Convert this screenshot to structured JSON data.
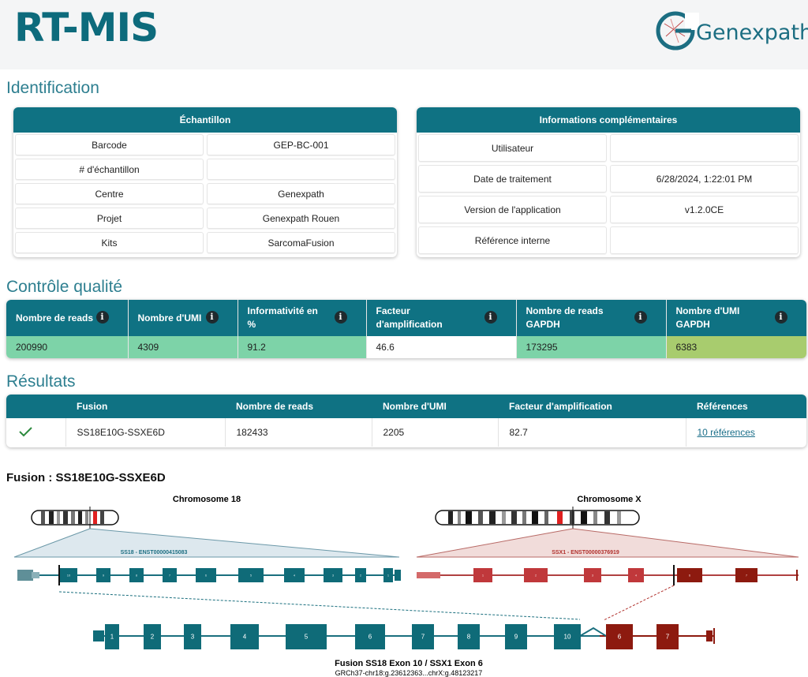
{
  "header": {
    "title": "RT-MIS",
    "logo_text": "Genexpath"
  },
  "identification": {
    "title": "Identification",
    "sample": {
      "heading": "Échantillon",
      "rows": [
        {
          "label": "Barcode",
          "value": "GEP-BC-001"
        },
        {
          "label": "# d'échantillon",
          "value": ""
        },
        {
          "label": "Centre",
          "value": "Genexpath"
        },
        {
          "label": "Projet",
          "value": "Genexpath Rouen"
        },
        {
          "label": "Kits",
          "value": "SarcomaFusion"
        }
      ]
    },
    "extra": {
      "heading": "Informations complémentaires",
      "rows": [
        {
          "label": "Utilisateur",
          "value": ""
        },
        {
          "label": "Date de traitement",
          "value": "6/28/2024, 1:22:01 PM"
        },
        {
          "label": "Version de l'application",
          "value": "v1.2.0CE"
        },
        {
          "label": "Référence interne",
          "value": ""
        }
      ]
    }
  },
  "qc": {
    "title": "Contrôle qualité",
    "columns": [
      {
        "label": "Nombre de reads",
        "value": "200990",
        "color": "#7dd3a8"
      },
      {
        "label": "Nombre d'UMI",
        "value": "4309",
        "color": "#7dd3a8"
      },
      {
        "label": "Informativité en %",
        "value": "91.2",
        "color": "#7dd3a8"
      },
      {
        "label": "Facteur d'amplification",
        "value": "46.6",
        "color": "#ffffff"
      },
      {
        "label": "Nombre de reads GAPDH",
        "value": "173295",
        "color": "#7dd3a8"
      },
      {
        "label": "Nombre d'UMI GAPDH",
        "value": "6383",
        "color": "#a8cc6e"
      }
    ],
    "info_glyph": "i"
  },
  "results": {
    "title": "Résultats",
    "headers": [
      "",
      "Fusion",
      "Nombre de reads",
      "Nombre d'UMI",
      "Facteur d'amplification",
      "Références"
    ],
    "row": {
      "status_icon": "check-icon",
      "fusion": "SS18E10G-SSXE6D",
      "reads": "182433",
      "umi": "2205",
      "amplification": "82.7",
      "references": "10 références"
    }
  },
  "fusion": {
    "title": "Fusion : SS18E10G-SSXE6D",
    "left": {
      "chromosome": "Chromosome 18",
      "transcript": "SS18 - ENST00000415083",
      "exons": [
        "10",
        "9",
        "8",
        "7",
        "6",
        "5",
        "4",
        "3",
        "2",
        "1"
      ]
    },
    "right": {
      "chromosome": "Chromosome X",
      "transcript": "SSX1 - ENST00000376919",
      "exons": [
        "1",
        "2",
        "3",
        "4",
        "5",
        "6",
        "7"
      ]
    },
    "fused_exons_left": [
      "1",
      "2",
      "3",
      "4",
      "5",
      "6",
      "7",
      "8",
      "9",
      "10"
    ],
    "fused_exons_right": [
      "6",
      "7"
    ],
    "caption": "Fusion SS18 Exon 10 / SSX1 Exon 6",
    "coordinates": "GRCh37-chr18:g.23612363...chrX:g.48123217",
    "colors": {
      "gene_a": "#0f6b78",
      "gene_b": "#c0383b",
      "gene_b_dark": "#8d1a0f",
      "accent": "#1c6e82"
    }
  }
}
